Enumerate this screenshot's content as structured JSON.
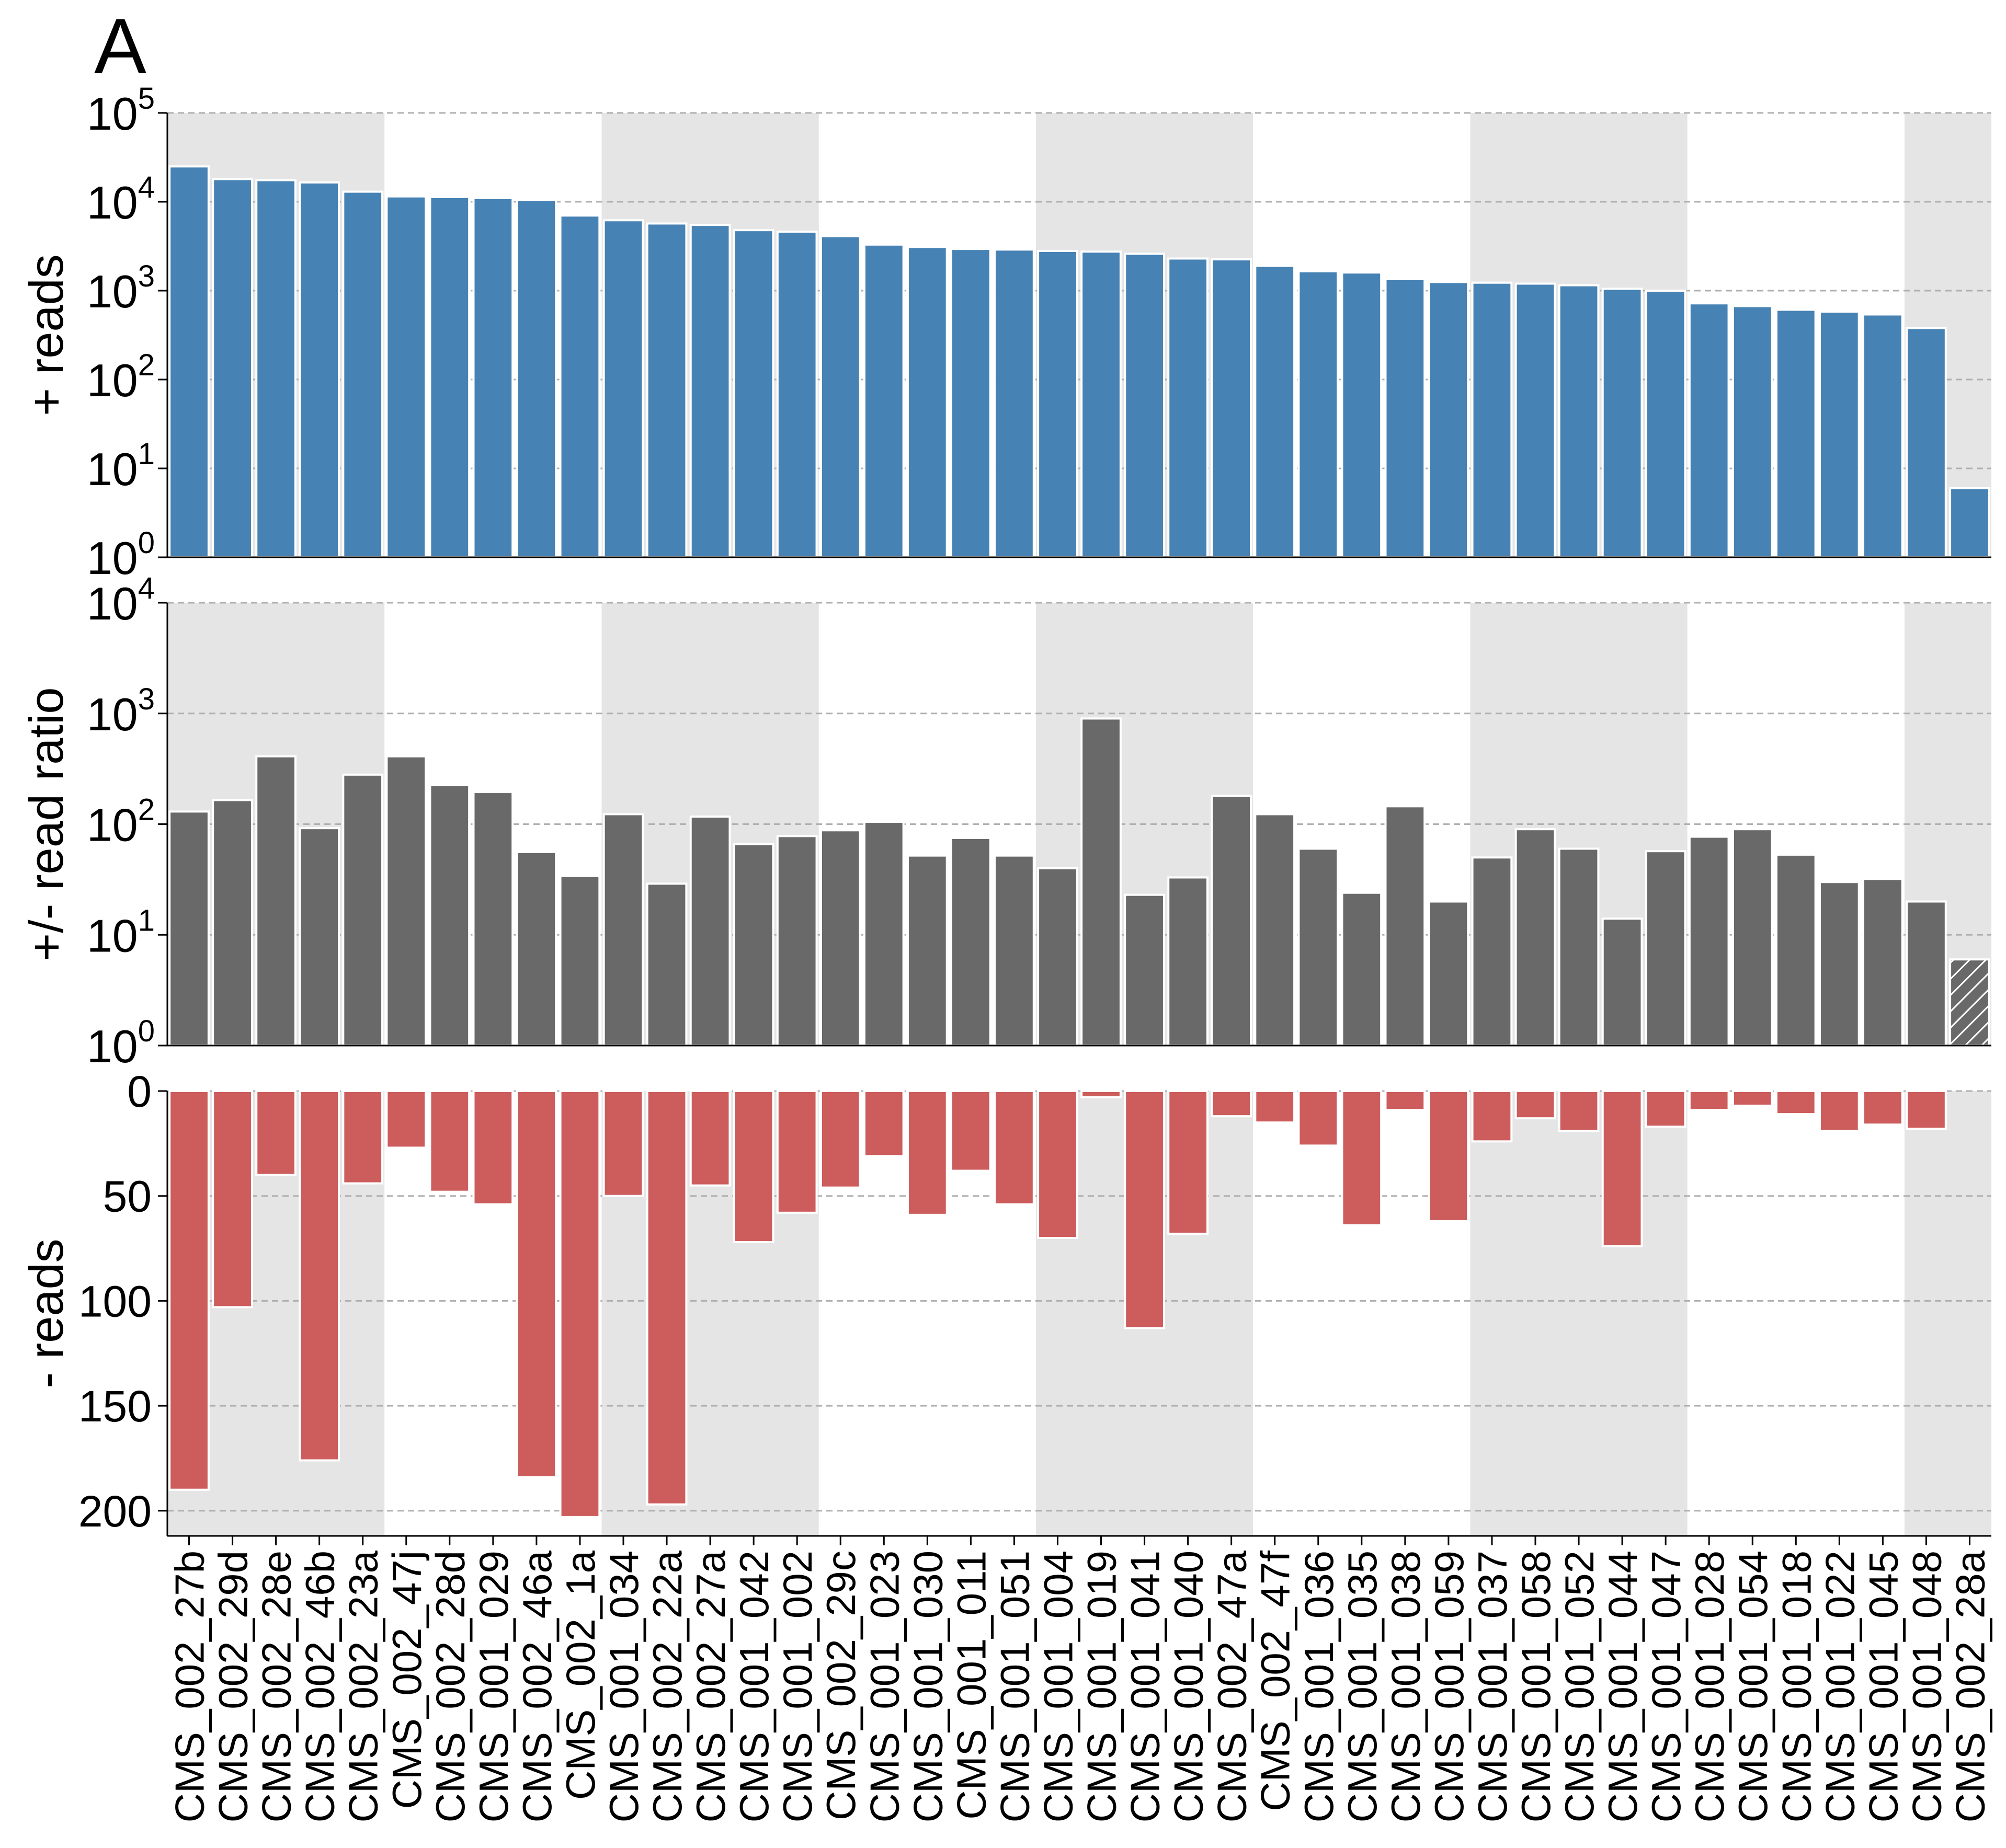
{
  "panel_letter": "A",
  "colors": {
    "positive": "#4682b4",
    "ratio": "#696969",
    "negative": "#cd5c5c",
    "band": "#e5e5e5",
    "grid": "#b0b0b0"
  },
  "chart_data": [
    {
      "type": "bar",
      "ylabel": "+ reads",
      "yscale": "log",
      "ylim": [
        1,
        100000
      ],
      "yticks": [
        {
          "base": "10",
          "exp": "0"
        },
        {
          "base": "10",
          "exp": "1"
        },
        {
          "base": "10",
          "exp": "2"
        },
        {
          "base": "10",
          "exp": "3"
        },
        {
          "base": "10",
          "exp": "4"
        },
        {
          "base": "10",
          "exp": "5"
        }
      ],
      "grid": true,
      "categories": [
        "CMS_002_27b",
        "CMS_002_29d",
        "CMS_002_28e",
        "CMS_002_46b",
        "CMS_002_23a",
        "CMS_002_47j",
        "CMS_002_28d",
        "CMS_001_029",
        "CMS_002_46a",
        "CMS_002_1a",
        "CMS_001_034",
        "CMS_002_22a",
        "CMS_002_27a",
        "CMS_001_042",
        "CMS_001_002",
        "CMS_002_29c",
        "CMS_001_023",
        "CMS_001_030",
        "CMS_001_011",
        "CMS_001_051",
        "CMS_001_004",
        "CMS_001_019",
        "CMS_001_041",
        "CMS_001_040",
        "CMS_002_47a",
        "CMS_002_47f",
        "CMS_001_036",
        "CMS_001_035",
        "CMS_001_038",
        "CMS_001_059",
        "CMS_001_037",
        "CMS_001_058",
        "CMS_001_052",
        "CMS_001_044",
        "CMS_001_047",
        "CMS_001_028",
        "CMS_001_054",
        "CMS_001_018",
        "CMS_001_022",
        "CMS_001_045",
        "CMS_001_048",
        "CMS_002_28a"
      ],
      "values": [
        25000,
        18000,
        17500,
        16500,
        13000,
        11500,
        11300,
        11000,
        10500,
        7000,
        6200,
        5700,
        5500,
        4800,
        4600,
        4100,
        3300,
        3100,
        2950,
        2900,
        2800,
        2750,
        2600,
        2300,
        2250,
        1900,
        1650,
        1600,
        1350,
        1250,
        1230,
        1200,
        1150,
        1050,
        1000,
        720,
        670,
        610,
        580,
        540,
        380,
        6
      ]
    },
    {
      "type": "bar",
      "ylabel": "+/- read ratio",
      "yscale": "log",
      "ylim": [
        1,
        10000
      ],
      "yticks": [
        {
          "base": "10",
          "exp": "0"
        },
        {
          "base": "10",
          "exp": "1"
        },
        {
          "base": "10",
          "exp": "2"
        },
        {
          "base": "10",
          "exp": "3"
        },
        {
          "base": "10",
          "exp": "4"
        }
      ],
      "grid": true,
      "hatched_last": true,
      "values": [
        130,
        165,
        410,
        92,
        280,
        410,
        225,
        195,
        56,
        34,
        123,
        29,
        117,
        66,
        78,
        88,
        105,
        52,
        75,
        52,
        40,
        900,
        23,
        33,
        180,
        123,
        60,
        24,
        145,
        20,
        50,
        90,
        60,
        14,
        57,
        77,
        90,
        53,
        30,
        32,
        20,
        6
      ]
    },
    {
      "type": "bar",
      "ylabel": "- reads",
      "yscale": "linear",
      "inverted": true,
      "ylim": [
        0,
        212
      ],
      "yticks": [
        "0",
        "50",
        "100",
        "150",
        "200"
      ],
      "grid": true,
      "values": [
        190,
        103,
        40,
        176,
        44,
        27,
        48,
        54,
        184,
        203,
        50,
        197,
        45,
        72,
        58,
        46,
        31,
        59,
        38,
        54,
        70,
        3,
        113,
        68,
        12,
        15,
        26,
        64,
        9,
        62,
        24,
        13,
        19,
        74,
        17,
        9,
        7,
        11,
        19,
        16,
        18,
        0
      ]
    }
  ]
}
